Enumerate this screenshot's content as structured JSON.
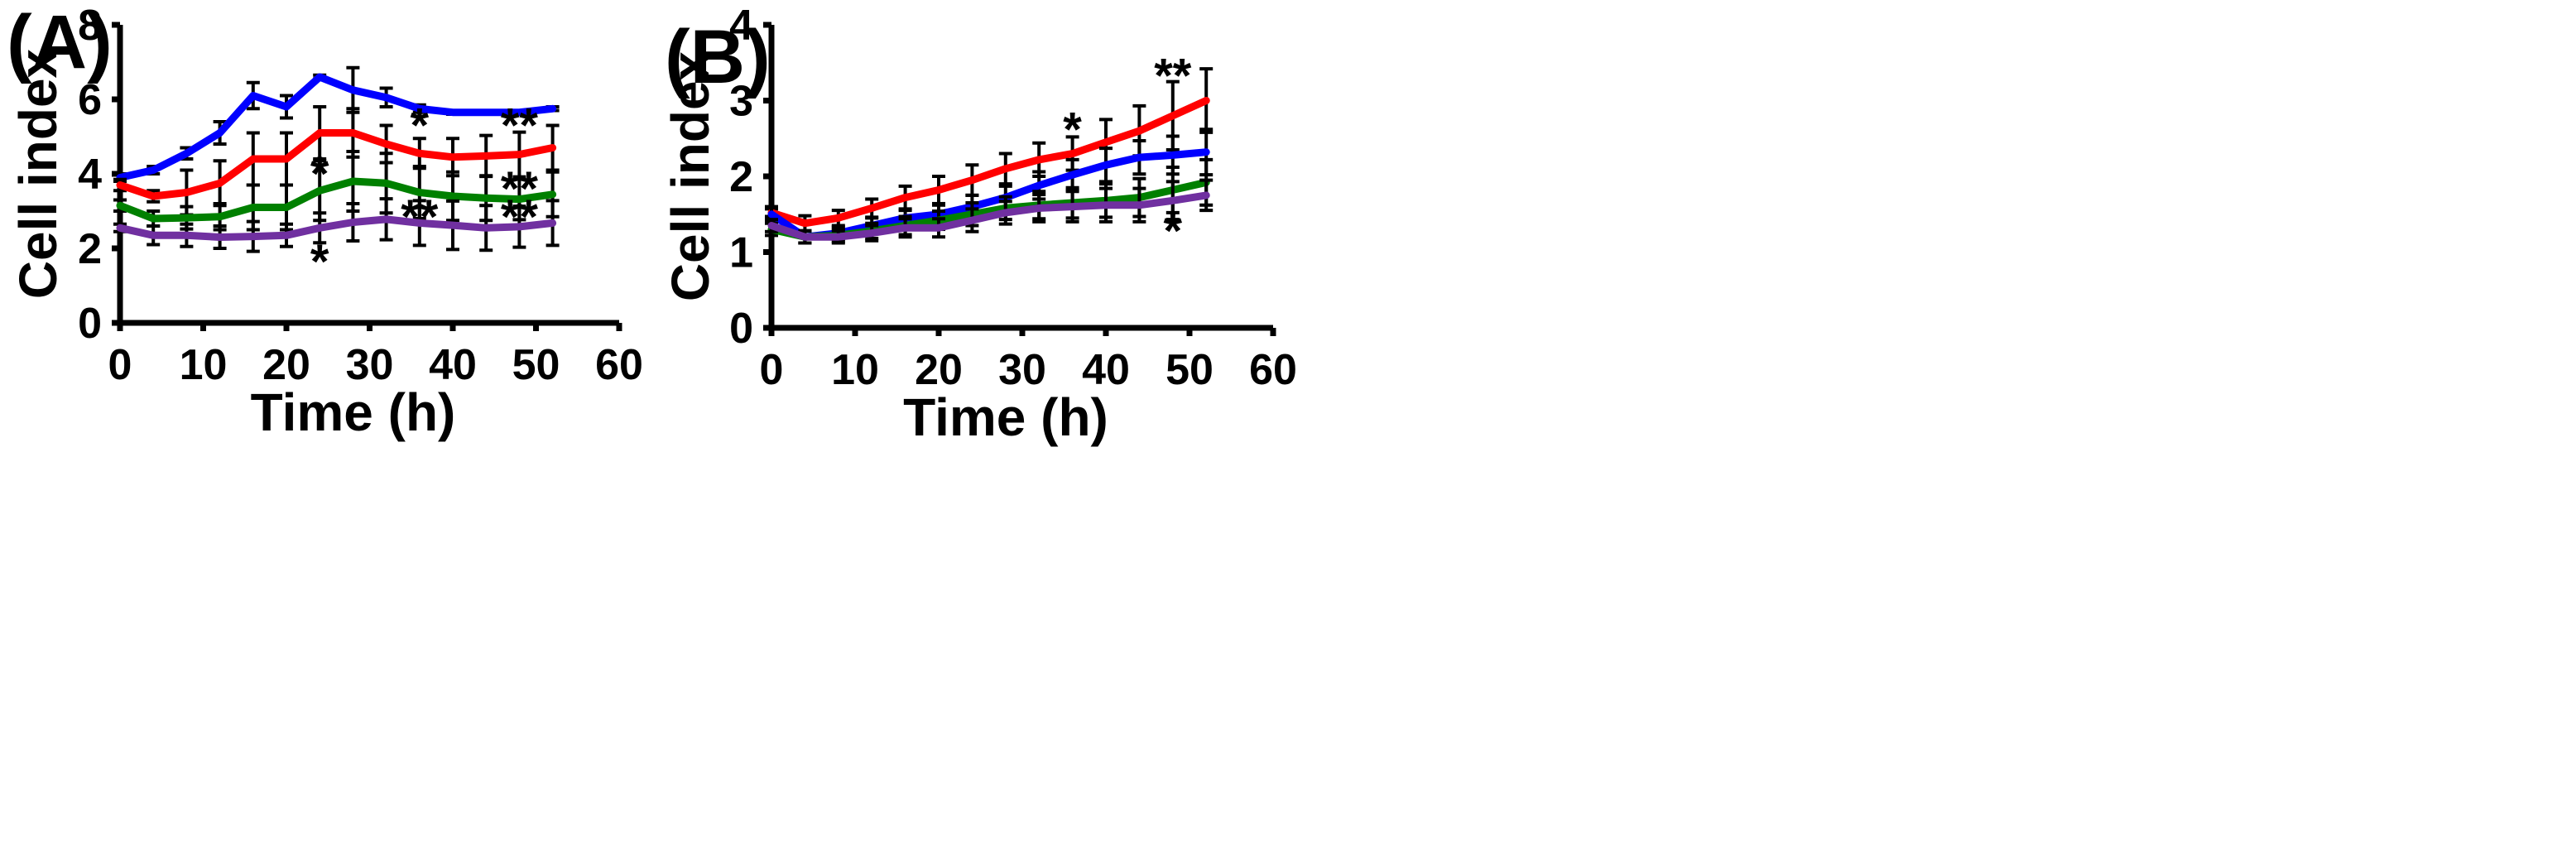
{
  "chart_data": [
    {
      "type": "line",
      "panel_label": "(A)",
      "xlabel": "Time (h)",
      "ylabel": "Cell index",
      "xlim": [
        0,
        60
      ],
      "ylim": [
        0,
        8
      ],
      "xticks": [
        0,
        10,
        20,
        30,
        40,
        50,
        60
      ],
      "yticks": [
        0,
        2,
        4,
        6,
        8
      ],
      "x": [
        0,
        4,
        8,
        12,
        16,
        20,
        24,
        28,
        32,
        36,
        40,
        44,
        48,
        52
      ],
      "series": [
        {
          "name": "blue",
          "color": "#0000ff",
          "values": [
            3.9,
            4.1,
            4.55,
            5.1,
            6.1,
            5.8,
            6.6,
            6.25,
            6.05,
            5.75,
            5.65,
            5.65,
            5.65,
            5.75
          ],
          "errors": [
            0.1,
            0.1,
            0.15,
            0.3,
            0.35,
            0.3,
            0.05,
            0.6,
            0.25,
            0.1,
            0.05,
            0.05,
            0.05,
            0.05
          ]
        },
        {
          "name": "red",
          "color": "#ff0000",
          "values": [
            3.7,
            3.4,
            3.5,
            3.75,
            4.4,
            4.4,
            5.1,
            5.1,
            4.8,
            4.55,
            4.45,
            4.48,
            4.52,
            4.7
          ],
          "errors": [
            0.15,
            0.15,
            0.6,
            0.6,
            0.7,
            0.7,
            0.7,
            0.65,
            0.5,
            0.4,
            0.5,
            0.55,
            0.6,
            0.6
          ]
        },
        {
          "name": "green",
          "color": "#008000",
          "values": [
            3.15,
            2.8,
            2.82,
            2.85,
            3.1,
            3.1,
            3.55,
            3.8,
            3.75,
            3.5,
            3.4,
            3.35,
            3.32,
            3.45
          ],
          "errors": [
            0.15,
            0.2,
            0.3,
            0.35,
            0.6,
            0.6,
            0.8,
            0.8,
            0.8,
            0.7,
            0.65,
            0.6,
            0.55,
            0.6
          ]
        },
        {
          "name": "purple",
          "color": "#7030a0",
          "values": [
            2.55,
            2.35,
            2.35,
            2.3,
            2.32,
            2.35,
            2.55,
            2.7,
            2.78,
            2.68,
            2.62,
            2.55,
            2.58,
            2.68
          ],
          "errors": [
            0.1,
            0.25,
            0.3,
            0.3,
            0.4,
            0.3,
            0.4,
            0.5,
            0.55,
            0.6,
            0.65,
            0.6,
            0.55,
            0.6
          ]
        }
      ],
      "annotations": [
        {
          "text": "*",
          "x": 24,
          "y": 4.0
        },
        {
          "text": "*",
          "x": 24,
          "y": 1.65
        },
        {
          "text": "*",
          "x": 36,
          "y": 5.3
        },
        {
          "text": "**",
          "x": 36,
          "y": 2.85
        },
        {
          "text": "**",
          "x": 48,
          "y": 5.3
        },
        {
          "text": "**",
          "x": 48,
          "y": 3.6
        },
        {
          "text": "**",
          "x": 48,
          "y": 2.85
        }
      ]
    },
    {
      "type": "line",
      "panel_label": "(B)",
      "xlabel": "Time (h)",
      "ylabel": "Cell index",
      "xlim": [
        0,
        60
      ],
      "ylim": [
        0,
        4
      ],
      "xticks": [
        0,
        10,
        20,
        30,
        40,
        50,
        60
      ],
      "yticks": [
        0,
        1,
        2,
        3,
        4
      ],
      "x": [
        0,
        4,
        8,
        12,
        16,
        20,
        24,
        28,
        32,
        36,
        40,
        44,
        48,
        52
      ],
      "series": [
        {
          "name": "red",
          "color": "#ff0000",
          "values": [
            1.52,
            1.38,
            1.45,
            1.58,
            1.72,
            1.82,
            1.95,
            2.1,
            2.22,
            2.3,
            2.45,
            2.6,
            2.8,
            3.0
          ],
          "errors": [
            0.05,
            0.1,
            0.1,
            0.12,
            0.15,
            0.18,
            0.2,
            0.2,
            0.22,
            0.22,
            0.3,
            0.33,
            0.45,
            0.42
          ]
        },
        {
          "name": "blue",
          "color": "#0000ff",
          "values": [
            1.5,
            1.2,
            1.25,
            1.35,
            1.45,
            1.5,
            1.6,
            1.72,
            1.88,
            2.02,
            2.15,
            2.25,
            2.28,
            2.32
          ],
          "errors": [
            0.1,
            0.08,
            0.08,
            0.1,
            0.1,
            0.12,
            0.15,
            0.15,
            0.18,
            0.2,
            0.22,
            0.22,
            0.25,
            0.3
          ]
        },
        {
          "name": "green",
          "color": "#008000",
          "values": [
            1.3,
            1.2,
            1.22,
            1.28,
            1.35,
            1.42,
            1.5,
            1.58,
            1.62,
            1.65,
            1.68,
            1.72,
            1.82,
            1.92
          ],
          "errors": [
            0.08,
            0.08,
            0.08,
            0.1,
            0.12,
            0.12,
            0.15,
            0.15,
            0.18,
            0.2,
            0.22,
            0.25,
            0.3,
            0.3
          ]
        },
        {
          "name": "purple",
          "color": "#7030a0",
          "values": [
            1.35,
            1.2,
            1.2,
            1.25,
            1.32,
            1.32,
            1.42,
            1.52,
            1.58,
            1.6,
            1.62,
            1.62,
            1.68,
            1.75
          ],
          "errors": [
            0.08,
            0.08,
            0.08,
            0.1,
            0.12,
            0.12,
            0.15,
            0.15,
            0.18,
            0.2,
            0.22,
            0.22,
            0.25,
            0.2
          ]
        }
      ],
      "annotations": [
        {
          "text": "*",
          "x": 36,
          "y": 2.62
        },
        {
          "text": "**",
          "x": 48,
          "y": 3.33
        },
        {
          "text": "*",
          "x": 48,
          "y": 1.28
        }
      ]
    }
  ]
}
